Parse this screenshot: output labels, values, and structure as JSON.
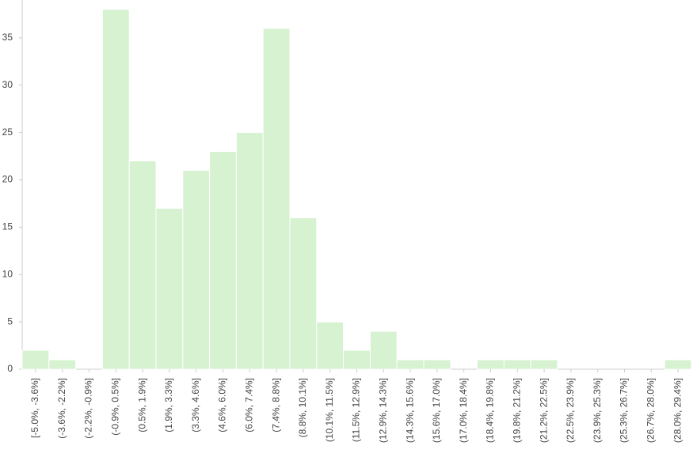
{
  "chart_data": {
    "type": "bar",
    "categories": [
      "[-5.0%, -3.6%]",
      "(-3.6%, -2.2%]",
      "(-2.2%, -0.9%]",
      "(-0.9%, 0.5%]",
      "(0.5%, 1.9%]",
      "(1.9%, 3.3%]",
      "(3.3%, 4.6%]",
      "(4.6%, 6.0%]",
      "(6.0%, 7.4%]",
      "(7.4%, 8.8%]",
      "(8.8%, 10.1%]",
      "(10.1%, 11.5%]",
      "(11.5%, 12.9%]",
      "(12.9%, 14.3%]",
      "(14.3%, 15.6%]",
      "(15.6%, 17.0%]",
      "(17.0%, 18.4%]",
      "(18.4%, 19.8%]",
      "(19.8%, 21.2%]",
      "(21.2%, 22.5%]",
      "(22.5%, 23.9%]",
      "(23.9%, 25.3%]",
      "(25.3%, 26.7%]",
      "(26.7%, 28.0%]",
      "(28.0%, 29.4%]"
    ],
    "values": [
      2,
      1,
      0,
      38,
      22,
      17,
      21,
      23,
      25,
      36,
      16,
      5,
      2,
      4,
      1,
      1,
      0,
      1,
      1,
      1,
      0,
      0,
      0,
      0,
      1
    ],
    "color": "#d6f2d0",
    "ylim": [
      0,
      39
    ],
    "yticks": [
      0,
      5,
      10,
      15,
      20,
      25,
      30,
      35
    ],
    "grid": false
  }
}
